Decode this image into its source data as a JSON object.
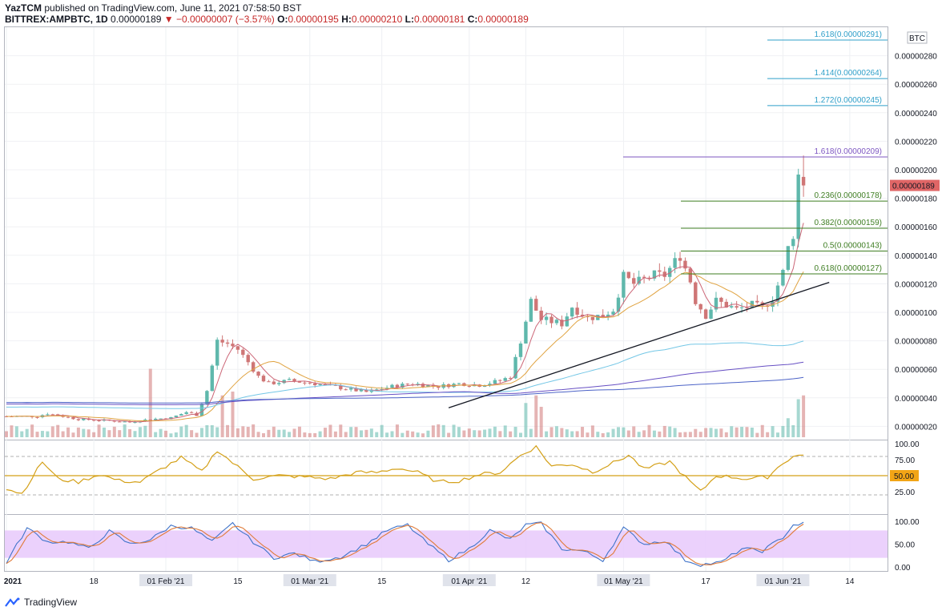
{
  "header": {
    "author": "YazTCM",
    "published_text": "published on TradingView.com, June 11, 2021 07:58:50 BST",
    "symbol": "BITTREX:AMPBTC, 1D",
    "last": "0.00000189",
    "change": "−0.00000007 (−3.57%)",
    "o_label": "O:",
    "o": "0.00000195",
    "h_label": "H:",
    "h": "0.00000210",
    "l_label": "L:",
    "l": "0.00000181",
    "c_label": "C:",
    "c": "0.00000189"
  },
  "footer": {
    "brand": "TradingView"
  },
  "colors": {
    "up": "#5fb8ac",
    "down": "#cf7676",
    "fib_ext": "#2f9fc9",
    "fib_ret": "#3e7d22",
    "fib_top": "#7e57c2",
    "rsi": "#d4a017",
    "stoch_k": "#3f73c9",
    "stoch_d": "#e07b39",
    "stoch_band": "#e7c9fb",
    "price_tag": "#e06666",
    "rsi_tag": "#f2a516"
  },
  "chart_data": {
    "type": "candlestick",
    "currency_tag": "BTC",
    "last_price_tag": "0.00000189",
    "y_ticks": [
      "0.00000280",
      "0.00000260",
      "0.00000240",
      "0.00000220",
      "0.00000200",
      "0.00000180",
      "0.00000160",
      "0.00000140",
      "0.00000120",
      "0.00000100",
      "0.00000080",
      "0.00000060",
      "0.00000040",
      "0.00000020"
    ],
    "y_tick_values": [
      280,
      260,
      240,
      220,
      200,
      180,
      160,
      140,
      120,
      100,
      80,
      60,
      40,
      20
    ],
    "y_unit_scale": "1e-8 BTC",
    "ylim": [
      13,
      297
    ],
    "x_labels": [
      "2021",
      "18",
      "01 Feb '21",
      "15",
      "01 Mar '21",
      "15",
      "01 Apr '21",
      "12",
      "01 May '21",
      "17",
      "01 Jun '21",
      "14"
    ],
    "x_label_boxed": [
      false,
      false,
      true,
      false,
      true,
      false,
      true,
      false,
      true,
      false,
      true,
      false
    ],
    "x_label_days": [
      0,
      17,
      31,
      45,
      59,
      73,
      90,
      101,
      120,
      136,
      151,
      164
    ],
    "fib_levels": [
      {
        "label": "1.618(0.00000291)",
        "value": 291,
        "kind": "ext"
      },
      {
        "label": "1.414(0.00000264)",
        "value": 264,
        "kind": "ext"
      },
      {
        "label": "1.272(0.00000245)",
        "value": 245,
        "kind": "ext"
      },
      {
        "label": "1.618(0.00000209)",
        "value": 209,
        "kind": "top"
      },
      {
        "label": "0.236(0.00000178)",
        "value": 178,
        "kind": "ret"
      },
      {
        "label": "0.382(0.00000159)",
        "value": 159,
        "kind": "ret"
      },
      {
        "label": "0.5(0.00000143)",
        "value": 143,
        "kind": "ret"
      },
      {
        "label": "0.618(0.00000127)",
        "value": 127,
        "kind": "ret"
      }
    ],
    "trendline": {
      "start": {
        "day": 86,
        "value": 33
      },
      "end": {
        "day": 160,
        "value": 121
      }
    },
    "price_anchors": [
      {
        "day": 0,
        "value": 27
      },
      {
        "day": 6,
        "value": 27
      },
      {
        "day": 8,
        "value": 29
      },
      {
        "day": 14,
        "value": 25
      },
      {
        "day": 20,
        "value": 24
      },
      {
        "day": 24,
        "value": 23
      },
      {
        "day": 28,
        "value": 25
      },
      {
        "day": 32,
        "value": 26
      },
      {
        "day": 35,
        "value": 30
      },
      {
        "day": 37,
        "value": 28
      },
      {
        "day": 39,
        "value": 45
      },
      {
        "day": 41,
        "value": 80
      },
      {
        "day": 43,
        "value": 78
      },
      {
        "day": 45,
        "value": 74
      },
      {
        "day": 47,
        "value": 65
      },
      {
        "day": 49,
        "value": 55
      },
      {
        "day": 51,
        "value": 50
      },
      {
        "day": 55,
        "value": 52
      },
      {
        "day": 60,
        "value": 50
      },
      {
        "day": 65,
        "value": 47
      },
      {
        "day": 70,
        "value": 44
      },
      {
        "day": 75,
        "value": 48
      },
      {
        "day": 79,
        "value": 50
      },
      {
        "day": 84,
        "value": 48
      },
      {
        "day": 88,
        "value": 50
      },
      {
        "day": 92,
        "value": 49
      },
      {
        "day": 96,
        "value": 52
      },
      {
        "day": 98,
        "value": 55
      },
      {
        "day": 100,
        "value": 80
      },
      {
        "day": 102,
        "value": 108
      },
      {
        "day": 104,
        "value": 95
      },
      {
        "day": 108,
        "value": 92
      },
      {
        "day": 110,
        "value": 104
      },
      {
        "day": 113,
        "value": 96
      },
      {
        "day": 116,
        "value": 98
      },
      {
        "day": 118,
        "value": 102
      },
      {
        "day": 120,
        "value": 125
      },
      {
        "day": 122,
        "value": 120
      },
      {
        "day": 126,
        "value": 126
      },
      {
        "day": 128,
        "value": 126
      },
      {
        "day": 131,
        "value": 140
      },
      {
        "day": 133,
        "value": 122
      },
      {
        "day": 134,
        "value": 108
      },
      {
        "day": 136,
        "value": 98
      },
      {
        "day": 138,
        "value": 108
      },
      {
        "day": 140,
        "value": 105
      },
      {
        "day": 142,
        "value": 102
      },
      {
        "day": 145,
        "value": 105
      },
      {
        "day": 147,
        "value": 103
      },
      {
        "day": 149,
        "value": 110
      },
      {
        "day": 151,
        "value": 128
      },
      {
        "day": 152,
        "value": 145
      },
      {
        "day": 153,
        "value": 155
      },
      {
        "day": 154,
        "value": 196
      },
      {
        "day": 155,
        "value": 189
      }
    ],
    "candle_days": 156,
    "volume_spikes": [
      {
        "day": 28,
        "value": 0.9
      },
      {
        "day": 42,
        "value": 0.55
      },
      {
        "day": 44,
        "value": 0.6
      },
      {
        "day": 101,
        "value": 0.45
      },
      {
        "day": 103,
        "value": 0.55
      },
      {
        "day": 104,
        "value": 0.4
      },
      {
        "day": 152,
        "value": 0.25
      },
      {
        "day": 154,
        "value": 0.5
      },
      {
        "day": 155,
        "value": 0.55
      }
    ],
    "moving_averages": [
      {
        "period": 20,
        "color": "#cc6677"
      },
      {
        "period": 50,
        "color": "#e0a341"
      },
      {
        "period": 100,
        "color": "#74c7e6"
      },
      {
        "period": 200,
        "color": "#6750c4"
      },
      {
        "period": 300,
        "color": "#4c63c7"
      }
    ],
    "rsi": {
      "ticks": [
        "100.00",
        "75.00",
        "25.00"
      ],
      "tick_values": [
        100,
        75,
        25
      ],
      "level_tag": "50.00",
      "level": 50,
      "bands": [
        80,
        20
      ],
      "anchors": [
        {
          "day": 0,
          "value": 30
        },
        {
          "day": 3,
          "value": 22
        },
        {
          "day": 7,
          "value": 72
        },
        {
          "day": 10,
          "value": 45
        },
        {
          "day": 14,
          "value": 40
        },
        {
          "day": 18,
          "value": 52
        },
        {
          "day": 22,
          "value": 42
        },
        {
          "day": 26,
          "value": 40
        },
        {
          "day": 30,
          "value": 60
        },
        {
          "day": 34,
          "value": 78
        },
        {
          "day": 38,
          "value": 56
        },
        {
          "day": 41,
          "value": 90
        },
        {
          "day": 44,
          "value": 70
        },
        {
          "day": 48,
          "value": 45
        },
        {
          "day": 53,
          "value": 50
        },
        {
          "day": 58,
          "value": 48
        },
        {
          "day": 63,
          "value": 45
        },
        {
          "day": 68,
          "value": 55
        },
        {
          "day": 72,
          "value": 55
        },
        {
          "day": 76,
          "value": 62
        },
        {
          "day": 80,
          "value": 55
        },
        {
          "day": 84,
          "value": 40
        },
        {
          "day": 88,
          "value": 42
        },
        {
          "day": 92,
          "value": 52
        },
        {
          "day": 96,
          "value": 55
        },
        {
          "day": 100,
          "value": 82
        },
        {
          "day": 103,
          "value": 95
        },
        {
          "day": 106,
          "value": 65
        },
        {
          "day": 110,
          "value": 68
        },
        {
          "day": 114,
          "value": 56
        },
        {
          "day": 118,
          "value": 70
        },
        {
          "day": 121,
          "value": 82
        },
        {
          "day": 124,
          "value": 60
        },
        {
          "day": 129,
          "value": 72
        },
        {
          "day": 132,
          "value": 48
        },
        {
          "day": 135,
          "value": 25
        },
        {
          "day": 138,
          "value": 50
        },
        {
          "day": 141,
          "value": 48
        },
        {
          "day": 144,
          "value": 45
        },
        {
          "day": 148,
          "value": 48
        },
        {
          "day": 151,
          "value": 70
        },
        {
          "day": 153,
          "value": 80
        },
        {
          "day": 155,
          "value": 82
        }
      ]
    },
    "stoch": {
      "ticks": [
        "100.00",
        "50.00",
        "0.00"
      ],
      "tick_values": [
        100,
        50,
        0
      ],
      "band": [
        20,
        80
      ],
      "anchors": [
        {
          "day": 0,
          "value": 10
        },
        {
          "day": 4,
          "value": 85
        },
        {
          "day": 8,
          "value": 55
        },
        {
          "day": 12,
          "value": 55
        },
        {
          "day": 16,
          "value": 40
        },
        {
          "day": 20,
          "value": 78
        },
        {
          "day": 24,
          "value": 50
        },
        {
          "day": 28,
          "value": 60
        },
        {
          "day": 32,
          "value": 90
        },
        {
          "day": 36,
          "value": 85
        },
        {
          "day": 40,
          "value": 55
        },
        {
          "day": 44,
          "value": 95
        },
        {
          "day": 48,
          "value": 55
        },
        {
          "day": 52,
          "value": 20
        },
        {
          "day": 56,
          "value": 30
        },
        {
          "day": 60,
          "value": 12
        },
        {
          "day": 65,
          "value": 22
        },
        {
          "day": 70,
          "value": 50
        },
        {
          "day": 74,
          "value": 80
        },
        {
          "day": 78,
          "value": 92
        },
        {
          "day": 82,
          "value": 50
        },
        {
          "day": 86,
          "value": 15
        },
        {
          "day": 90,
          "value": 40
        },
        {
          "day": 94,
          "value": 80
        },
        {
          "day": 98,
          "value": 60
        },
        {
          "day": 101,
          "value": 92
        },
        {
          "day": 104,
          "value": 95
        },
        {
          "day": 108,
          "value": 40
        },
        {
          "day": 112,
          "value": 35
        },
        {
          "day": 116,
          "value": 15
        },
        {
          "day": 120,
          "value": 85
        },
        {
          "day": 124,
          "value": 50
        },
        {
          "day": 128,
          "value": 58
        },
        {
          "day": 132,
          "value": 15
        },
        {
          "day": 135,
          "value": 5
        },
        {
          "day": 139,
          "value": 10
        },
        {
          "day": 143,
          "value": 40
        },
        {
          "day": 147,
          "value": 35
        },
        {
          "day": 151,
          "value": 65
        },
        {
          "day": 153,
          "value": 92
        },
        {
          "day": 155,
          "value": 95
        }
      ]
    }
  }
}
